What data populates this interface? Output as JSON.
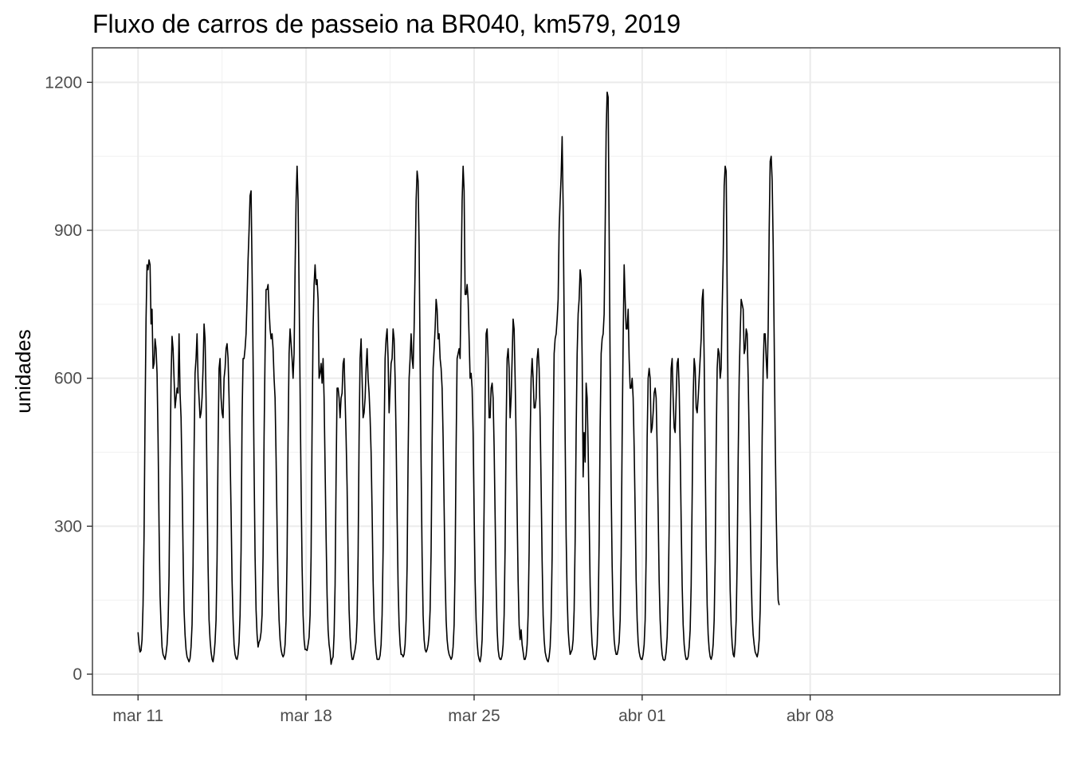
{
  "chart_data": {
    "type": "line",
    "title": "Fluxo de carros de passeio na BR040, km579, 2019",
    "xlabel": "",
    "ylabel": "unidades",
    "ylim": [
      -42,
      1270
    ],
    "xlim_days_from_mar11": [
      -1.9,
      38.4
    ],
    "y_ticks": [
      0,
      300,
      600,
      900,
      1200
    ],
    "y_tick_labels": [
      "0",
      "300",
      "600",
      "900",
      "1200"
    ],
    "x_ticks": [
      {
        "date": "2019-03-11",
        "label": "mar 11"
      },
      {
        "date": "2019-03-18",
        "label": "mar 18"
      },
      {
        "date": "2019-03-25",
        "label": "mar 25"
      },
      {
        "date": "2019-04-01",
        "label": "abr 01"
      },
      {
        "date": "2019-04-08",
        "label": "abr 08"
      }
    ],
    "grid": true,
    "legend": "none",
    "line_color": "#000000",
    "series": [
      {
        "start": "2019-03-11 00:00",
        "interval": "1 hour",
        "values": [
          85,
          60,
          45,
          48,
          70,
          140,
          280,
          520,
          720,
          830,
          820,
          840,
          830,
          710,
          740,
          620,
          630,
          680,
          660,
          610,
          480,
          300,
          160,
          100,
          55,
          40,
          35,
          30,
          42,
          60,
          100,
          200,
          420,
          600,
          685,
          660,
          600,
          540,
          560,
          580,
          570,
          690,
          570,
          520,
          400,
          250,
          130,
          80,
          50,
          35,
          30,
          25,
          32,
          55,
          100,
          220,
          450,
          610,
          640,
          690,
          600,
          560,
          520,
          530,
          560,
          620,
          710,
          680,
          560,
          380,
          220,
          110,
          70,
          45,
          30,
          25,
          40,
          65,
          110,
          230,
          460,
          620,
          640,
          560,
          530,
          520,
          600,
          620,
          660,
          670,
          640,
          560,
          450,
          330,
          190,
          110,
          60,
          40,
          32,
          30,
          40,
          65,
          120,
          250,
          520,
          640,
          640,
          660,
          690,
          760,
          840,
          900,
          970,
          980,
          820,
          640,
          420,
          240,
          130,
          80,
          55,
          65,
          70,
          85,
          120,
          240,
          480,
          650,
          780,
          780,
          790,
          740,
          700,
          680,
          690,
          660,
          600,
          560,
          440,
          300,
          180,
          110,
          70,
          50,
          40,
          35,
          40,
          60,
          110,
          240,
          480,
          650,
          700,
          670,
          640,
          600,
          650,
          820,
          960,
          1030,
          960,
          780,
          580,
          380,
          220,
          120,
          70,
          50,
          50,
          48,
          60,
          75,
          120,
          240,
          500,
          700,
          790,
          830,
          790,
          800,
          760,
          600,
          610,
          630,
          590,
          640,
          560,
          420,
          280,
          160,
          90,
          60,
          45,
          20,
          30,
          35,
          80,
          180,
          400,
          580,
          580,
          560,
          520,
          560,
          570,
          630,
          640,
          560,
          480,
          380,
          240,
          130,
          75,
          45,
          30,
          30,
          40,
          50,
          65,
          110,
          240,
          480,
          640,
          680,
          600,
          520,
          530,
          560,
          620,
          660,
          600,
          570,
          520,
          450,
          330,
          190,
          110,
          70,
          45,
          30,
          30,
          30,
          38,
          60,
          120,
          250,
          480,
          640,
          680,
          700,
          640,
          530,
          580,
          630,
          640,
          700,
          680,
          600,
          480,
          320,
          180,
          100,
          60,
          40,
          40,
          35,
          40,
          60,
          110,
          220,
          440,
          600,
          640,
          690,
          640,
          620,
          700,
          820,
          960,
          1020,
          1000,
          870,
          640,
          420,
          240,
          120,
          70,
          50,
          45,
          50,
          60,
          80,
          130,
          250,
          470,
          620,
          660,
          700,
          760,
          740,
          680,
          690,
          640,
          620,
          580,
          480,
          340,
          200,
          110,
          70,
          50,
          40,
          35,
          30,
          35,
          55,
          100,
          220,
          460,
          640,
          650,
          660,
          640,
          800,
          960,
          1030,
          980,
          770,
          770,
          790,
          760,
          680,
          600,
          610,
          580,
          490,
          330,
          190,
          110,
          65,
          40,
          30,
          25,
          38,
          70,
          160,
          340,
          560,
          690,
          700,
          640,
          520,
          520,
          580,
          590,
          560,
          460,
          320,
          180,
          90,
          50,
          35,
          30,
          30,
          38,
          60,
          120,
          260,
          500,
          640,
          660,
          620,
          520,
          560,
          640,
          720,
          700,
          600,
          480,
          330,
          190,
          100,
          70,
          90,
          60,
          45,
          30,
          30,
          38,
          60,
          120,
          250,
          470,
          600,
          640,
          600,
          540,
          540,
          560,
          640,
          660,
          620,
          520,
          380,
          230,
          120,
          70,
          45,
          35,
          28,
          25,
          35,
          55,
          110,
          240,
          480,
          650,
          680,
          690,
          720,
          760,
          900,
          960,
          1010,
          1090,
          950,
          720,
          480,
          280,
          160,
          90,
          60,
          40,
          45,
          50,
          70,
          130,
          270,
          490,
          650,
          730,
          760,
          820,
          800,
          640,
          400,
          490,
          430,
          590,
          560,
          460,
          320,
          180,
          100,
          60,
          40,
          30,
          30,
          38,
          60,
          120,
          270,
          500,
          650,
          680,
          690,
          730,
          900,
          1100,
          1180,
          1170,
          900,
          620,
          380,
          220,
          120,
          70,
          50,
          40,
          40,
          50,
          65,
          110,
          240,
          480,
          680,
          830,
          760,
          700,
          700,
          740,
          640,
          580,
          580,
          600,
          560,
          460,
          330,
          190,
          110,
          65,
          45,
          35,
          30,
          30,
          40,
          60,
          110,
          240,
          480,
          600,
          620,
          600,
          490,
          500,
          530,
          570,
          580,
          560,
          460,
          330,
          190,
          110,
          65,
          40,
          30,
          28,
          30,
          45,
          75,
          150,
          300,
          500,
          620,
          640,
          560,
          500,
          490,
          560,
          630,
          640,
          580,
          460,
          310,
          180,
          100,
          60,
          40,
          30,
          30,
          35,
          55,
          90,
          180,
          360,
          560,
          640,
          620,
          540,
          530,
          560,
          600,
          640,
          680,
          760,
          780,
          640,
          440,
          260,
          140,
          80,
          50,
          35,
          30,
          38,
          60,
          110,
          230,
          460,
          620,
          660,
          650,
          600,
          620,
          740,
          840,
          990,
          1030,
          1020,
          780,
          520,
          300,
          170,
          100,
          60,
          40,
          35,
          60,
          110,
          230,
          440,
          600,
          690,
          760,
          750,
          740,
          650,
          660,
          700,
          690,
          600,
          480,
          330,
          200,
          120,
          80,
          60,
          45,
          40,
          35,
          45,
          70,
          130,
          260,
          480,
          620,
          690,
          690,
          640,
          600,
          700,
          900,
          1040,
          1050,
          1000,
          870,
          680,
          480,
          330,
          220,
          150,
          140
        ]
      }
    ]
  }
}
